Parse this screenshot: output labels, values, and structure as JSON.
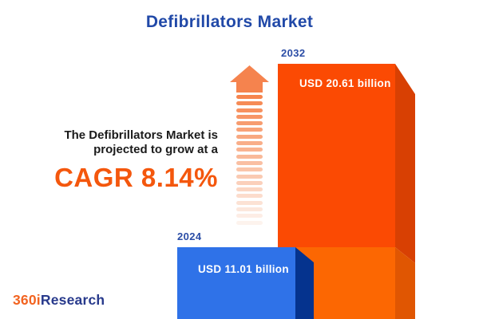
{
  "title": "Defibrillators Market",
  "tagline": {
    "line1": "The Defibrillators Market is",
    "line2": "projected to grow at a",
    "cagr": "CAGR 8.14%"
  },
  "logo": {
    "prefix": "360i",
    "suffix": "Research"
  },
  "colors": {
    "title_blue": "#2149A8",
    "cagr_orange": "#F4570D",
    "year_label_blue": "#2B4DA6",
    "bar_2024_front": "#2F72E8",
    "bar_2024_side": "#05338E",
    "bar_2032_front": "#FB4A03",
    "bar_2032_front_lower": "#FC6702",
    "bar_2032_side": "#D84003",
    "bar_2032_side_lower": "#E05602",
    "arrow_orange": "#F5834E",
    "logo_orange": "#F26421",
    "logo_blue": "#283A8C"
  },
  "chart_data": {
    "type": "bar",
    "title": "Defibrillators Market",
    "unit": "USD billion",
    "categories": [
      "2024",
      "2032"
    ],
    "values": [
      11.01,
      20.61
    ],
    "bars": [
      {
        "year": "2024",
        "value": 11.01,
        "value_label": "USD 11.01 billion",
        "color": "#2F72E8"
      },
      {
        "year": "2032",
        "value": 20.61,
        "value_label": "USD 20.61 billion",
        "color": "#FB4A03"
      }
    ],
    "cagr_percent": 8.14,
    "annotation": "The Defibrillators Market is projected to grow at a CAGR 8.14%",
    "legend_position": "none",
    "grid": false
  }
}
